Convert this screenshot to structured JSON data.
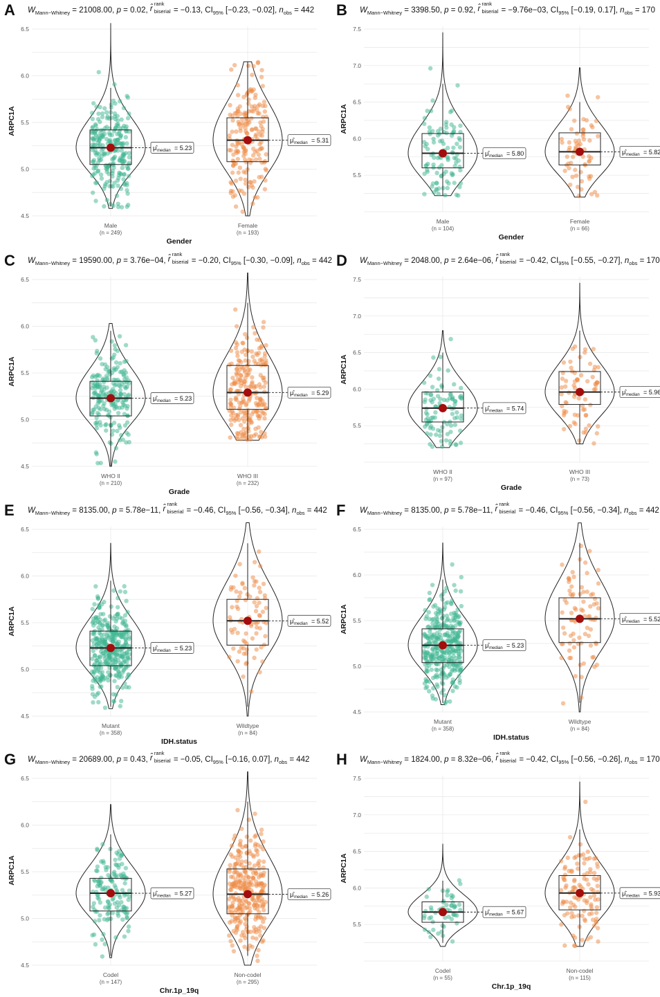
{
  "colors": {
    "group1": "#3fb592",
    "group2": "#ee8a43",
    "median_dot": "#a30d0d",
    "violin": "#222222",
    "grid": "#e6e6e6"
  },
  "panels": [
    {
      "letter": "A",
      "subtitle": {
        "W": "21008.00",
        "p": "0.02",
        "r": "−0.13",
        "ci": "[−0.23, −0.02]",
        "nobs": "442"
      },
      "chart_data": {
        "type": "violin-box-scatter",
        "xlabel": "Gender",
        "ylabel": "ARPC1A",
        "ylim": [
          4.5,
          6.5
        ],
        "yticks": [
          "4.5",
          "5.0",
          "5.5",
          "6.0",
          "6.5"
        ],
        "groups": [
          {
            "name": "Male",
            "n": "(n = 249)",
            "median": 5.23,
            "median_label": "= 5.23",
            "q1": 5.05,
            "q3": 5.42,
            "whisker_low": 4.6,
            "whisker_high": 5.87,
            "min": 4.58,
            "max": 6.56,
            "count": 249
          },
          {
            "name": "Female",
            "n": "(n = 193)",
            "median": 5.31,
            "median_label": "= 5.31",
            "q1": 5.08,
            "q3": 5.55,
            "whisker_low": 4.5,
            "whisker_high": 6.15,
            "min": 4.5,
            "max": 6.15,
            "count": 193
          }
        ]
      }
    },
    {
      "letter": "B",
      "subtitle": {
        "W": "3398.50",
        "p": "0.92",
        "r": "−9.76e−03",
        "ci": "[−0.19, 0.17]",
        "nobs": "170"
      },
      "chart_data": {
        "type": "violin-box-scatter",
        "xlabel": "Gender",
        "ylabel": "ARPC1A",
        "ylim": [
          5.0,
          7.5
        ],
        "yticks": [
          "5.5",
          "6.0",
          "6.5",
          "7.0",
          "7.5"
        ],
        "groups": [
          {
            "name": "Male",
            "n": "(n = 104)",
            "median": 5.8,
            "median_label": "= 5.80",
            "q1": 5.6,
            "q3": 6.07,
            "whisker_low": 5.22,
            "whisker_high": 6.75,
            "min": 5.22,
            "max": 7.45,
            "count": 104
          },
          {
            "name": "Female",
            "n": "(n = 66)",
            "median": 5.82,
            "median_label": "= 5.82",
            "q1": 5.64,
            "q3": 6.08,
            "whisker_low": 5.2,
            "whisker_high": 6.5,
            "min": 5.2,
            "max": 6.97,
            "count": 66
          }
        ]
      }
    },
    {
      "letter": "C",
      "subtitle": {
        "W": "19590.00",
        "p": "3.76e−04",
        "r": "−0.20",
        "ci": "[−0.30, −0.09]",
        "nobs": "442"
      },
      "chart_data": {
        "type": "violin-box-scatter",
        "xlabel": "Grade",
        "ylabel": "ARPC1A",
        "ylim": [
          4.5,
          6.5
        ],
        "yticks": [
          "4.5",
          "5.0",
          "5.5",
          "6.0",
          "6.5"
        ],
        "groups": [
          {
            "name": "WHO II",
            "n": "(n = 210)",
            "median": 5.23,
            "median_label": "= 5.23",
            "q1": 5.04,
            "q3": 5.41,
            "whisker_low": 4.5,
            "whisker_high": 5.95,
            "min": 4.5,
            "max": 6.03,
            "count": 210
          },
          {
            "name": "WHO III",
            "n": "(n = 232)",
            "median": 5.29,
            "median_label": "= 5.29",
            "q1": 5.11,
            "q3": 5.58,
            "whisker_low": 4.78,
            "whisker_high": 6.25,
            "min": 4.78,
            "max": 6.57,
            "count": 232
          }
        ]
      }
    },
    {
      "letter": "D",
      "subtitle": {
        "W": "2048.00",
        "p": "2.64e−06",
        "r": "−0.42",
        "ci": "[−0.55, −0.27]",
        "nobs": "170"
      },
      "chart_data": {
        "type": "violin-box-scatter",
        "xlabel": "Grade",
        "ylabel": "ARPC1A",
        "ylim": [
          5.0,
          7.5
        ],
        "yticks": [
          "5.5",
          "6.0",
          "6.5",
          "7.0",
          "7.5"
        ],
        "groups": [
          {
            "name": "WHO II",
            "n": "(n = 97)",
            "median": 5.74,
            "median_label": "= 5.74",
            "q1": 5.55,
            "q3": 5.96,
            "whisker_low": 5.22,
            "whisker_high": 6.5,
            "min": 5.2,
            "max": 6.8,
            "count": 97
          },
          {
            "name": "WHO III",
            "n": "(n = 73)",
            "median": 5.96,
            "median_label": "= 5.96",
            "q1": 5.79,
            "q3": 6.24,
            "whisker_low": 5.25,
            "whisker_high": 6.8,
            "min": 5.25,
            "max": 7.45,
            "count": 73
          }
        ]
      }
    },
    {
      "letter": "E",
      "subtitle": {
        "W": "8135.00",
        "p": "5.78e−11",
        "r": "−0.46",
        "ci": "[−0.56, −0.34]",
        "nobs": "442"
      },
      "chart_data": {
        "type": "violin-box-scatter",
        "xlabel": "IDH.status",
        "ylabel": "ARPC1A",
        "ylim": [
          4.5,
          6.5
        ],
        "yticks": [
          "4.5",
          "5.0",
          "5.5",
          "6.0",
          "6.5"
        ],
        "groups": [
          {
            "name": "Mutant",
            "n": "(n = 358)",
            "median": 5.23,
            "median_label": "= 5.23",
            "q1": 5.04,
            "q3": 5.41,
            "whisker_low": 4.6,
            "whisker_high": 5.95,
            "min": 4.58,
            "max": 6.35,
            "count": 358
          },
          {
            "name": "Wildtype",
            "n": "(n = 84)",
            "median": 5.52,
            "median_label": "= 5.52",
            "q1": 5.26,
            "q3": 5.75,
            "whisker_low": 4.6,
            "whisker_high": 6.35,
            "min": 4.5,
            "max": 6.57,
            "count": 84
          }
        ]
      }
    },
    {
      "letter": "F",
      "subtitle": {
        "W": "8135.00",
        "p": "5.78e−11",
        "r": "−0.46",
        "ci": "[−0.56, −0.34]",
        "nobs": "442"
      },
      "chart_data": {
        "type": "violin-box-scatter",
        "xlabel": "IDH.status",
        "ylabel": "ARPC1A",
        "ylim": [
          4.5,
          6.5
        ],
        "yticks": [
          "4.5",
          "5.0",
          "5.5",
          "6.0",
          "6.5"
        ],
        "groups": [
          {
            "name": "Mutant",
            "n": "(n = 358)",
            "median": 5.23,
            "median_label": "= 5.23",
            "q1": 5.04,
            "q3": 5.41,
            "whisker_low": 4.6,
            "whisker_high": 5.95,
            "min": 4.58,
            "max": 6.35,
            "count": 358
          },
          {
            "name": "Wildtype",
            "n": "(n = 84)",
            "median": 5.52,
            "median_label": "= 5.52",
            "q1": 5.26,
            "q3": 5.75,
            "whisker_low": 4.6,
            "whisker_high": 6.35,
            "min": 4.5,
            "max": 6.57,
            "count": 84
          }
        ]
      }
    },
    {
      "letter": "G",
      "subtitle": {
        "W": "20689.00",
        "p": "0.43",
        "r": "−0.05",
        "ci": "[−0.16, 0.07]",
        "nobs": "442"
      },
      "chart_data": {
        "type": "violin-box-scatter",
        "xlabel": "Chr.1p_19q",
        "ylabel": "ARPC1A",
        "ylim": [
          4.5,
          6.5
        ],
        "yticks": [
          "4.5",
          "5.0",
          "5.5",
          "6.0",
          "6.5"
        ],
        "groups": [
          {
            "name": "Codel",
            "n": "(n = 147)",
            "median": 5.27,
            "median_label": "= 5.27",
            "q1": 5.08,
            "q3": 5.43,
            "whisker_low": 4.6,
            "whisker_high": 5.9,
            "min": 4.58,
            "max": 6.22,
            "count": 147
          },
          {
            "name": "Non-codel",
            "n": "(n = 295)",
            "median": 5.26,
            "median_label": "= 5.26",
            "q1": 5.05,
            "q3": 5.53,
            "whisker_low": 4.6,
            "whisker_high": 6.25,
            "min": 4.5,
            "max": 6.57,
            "count": 295
          }
        ]
      }
    },
    {
      "letter": "H",
      "subtitle": {
        "W": "1824.00",
        "p": "8.32e−06",
        "r": "−0.42",
        "ci": "[−0.56, −0.26]",
        "nobs": "170"
      },
      "chart_data": {
        "type": "violin-box-scatter",
        "xlabel": "Chr.1p_19q",
        "ylabel": "ARPC1A",
        "ylim": [
          5.0,
          7.5
        ],
        "yticks": [
          "5.5",
          "6.0",
          "6.5",
          "7.0",
          "7.5"
        ],
        "groups": [
          {
            "name": "Codel",
            "n": "(n = 55)",
            "median": 5.67,
            "median_label": "= 5.67",
            "q1": 5.53,
            "q3": 5.81,
            "whisker_low": 5.25,
            "whisker_high": 6.1,
            "min": 5.2,
            "max": 6.6,
            "count": 55
          },
          {
            "name": "Non-codel",
            "n": "(n = 115)",
            "median": 5.93,
            "median_label": "= 5.93",
            "q1": 5.7,
            "q3": 6.17,
            "whisker_low": 5.2,
            "whisker_high": 6.8,
            "min": 5.2,
            "max": 7.45,
            "count": 115
          }
        ]
      }
    }
  ]
}
